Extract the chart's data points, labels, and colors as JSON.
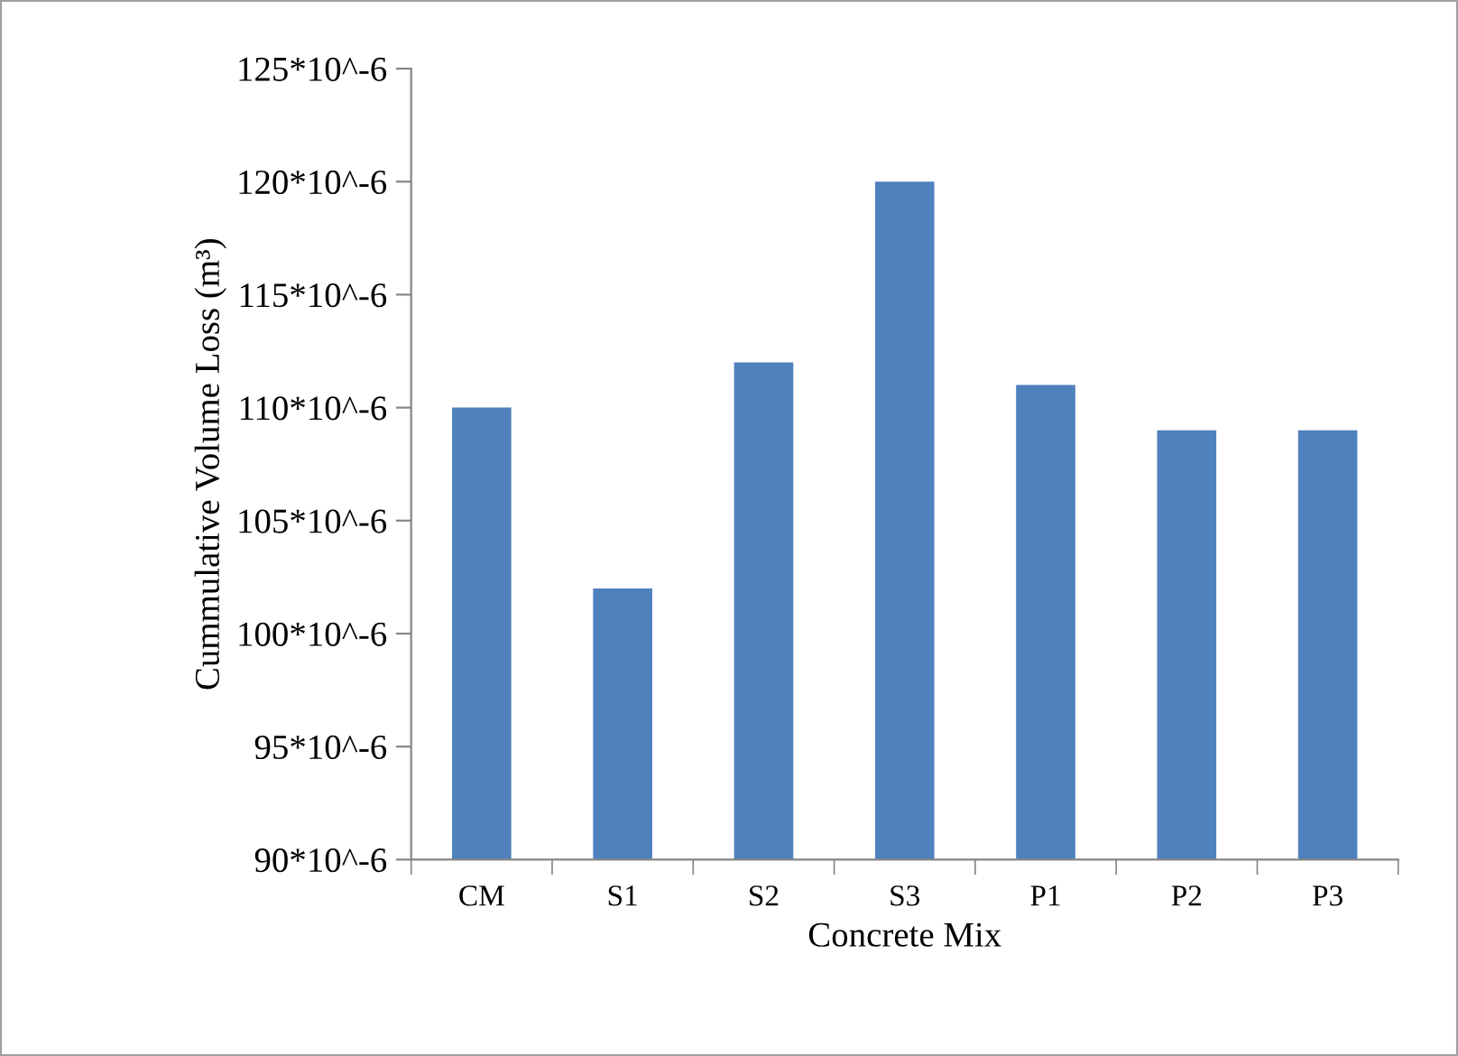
{
  "chart_data": {
    "type": "bar",
    "xlabel": "Concrete Mix",
    "ylabel": "Cummulative Volume Loss (m³)",
    "categories": [
      "CM",
      "S1",
      "S2",
      "S3",
      "P1",
      "P2",
      "P3"
    ],
    "values": [
      0.00011,
      0.000102,
      0.000112,
      0.00012,
      0.000111,
      0.000109,
      0.000109
    ],
    "color": "#4f81bd",
    "ylim": [
      9e-05,
      0.000125
    ],
    "yticks": [
      {
        "value": 9e-05,
        "label": "90*10^-6"
      },
      {
        "value": 9.5e-05,
        "label": "95*10^-6"
      },
      {
        "value": 0.0001,
        "label": "100*10^-6"
      },
      {
        "value": 0.000105,
        "label": "105*10^-6"
      },
      {
        "value": 0.00011,
        "label": "110*10^-6"
      },
      {
        "value": 0.000115,
        "label": "115*10^-6"
      },
      {
        "value": 0.00012,
        "label": "120*10^-6"
      },
      {
        "value": 0.000125,
        "label": "125*10^-6"
      }
    ],
    "grid": false,
    "legend": false
  }
}
